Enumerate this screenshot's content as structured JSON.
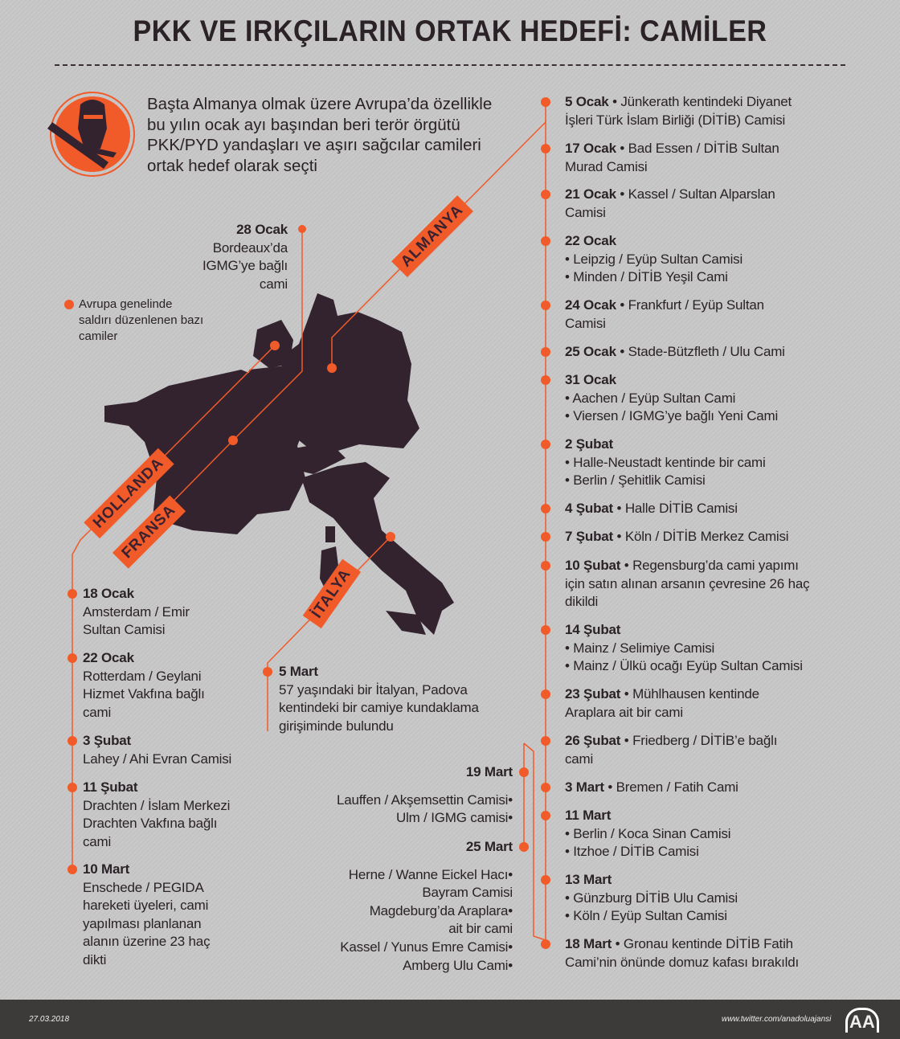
{
  "title": "PKK VE IRKÇILARIN ORTAK HEDEFİ: CAMİLER",
  "intro": "Başta Almanya olmak üzere Avrupa’da özellikle bu yılın ocak ayı başından beri terör örgütü PKK/PYD yandaşları ve aşırı sağcılar camileri ortak hedef olarak seçti",
  "icon": "militant-with-rifle-icon",
  "legend": [
    "Avrupa genelinde",
    "saldırı düzenlenen bazı",
    "camiler"
  ],
  "colors": {
    "accent": "#f15a29",
    "map": "#33232f",
    "footer": "#3c3b3a"
  },
  "country_labels": {
    "germany": "ALMANYA",
    "netherlands": "HOLLANDA",
    "france": "FRANSA",
    "italy": "İTALYA"
  },
  "france": {
    "date": "28 Ocak",
    "lines": [
      "Bordeaux’da",
      "IGMG’ye bağlı",
      "cami"
    ]
  },
  "italy": {
    "date": "5 Mart",
    "lines": [
      "57 yaşındaki bir İtalyan, Padova",
      "kentindeki bir camiye kundaklama",
      "girişiminde bulundu"
    ]
  },
  "netherlands": [
    {
      "date": "18 Ocak",
      "lines": [
        "Amsterdam / Emir",
        "Sultan Camisi"
      ]
    },
    {
      "date": "22 Ocak",
      "lines": [
        "Rotterdam / Geylani",
        "Hizmet Vakfına bağlı",
        "cami"
      ]
    },
    {
      "date": "3 Şubat",
      "lines": [
        "Lahey / Ahi Evran Camisi"
      ]
    },
    {
      "date": "11 Şubat",
      "lines": [
        "Drachten / İslam Merkezi",
        "Drachten Vakfına bağlı",
        "cami"
      ]
    },
    {
      "date": "10 Mart",
      "lines": [
        "Enschede / PEGIDA",
        "hareketi üyeleri, cami",
        "yapılması planlanan",
        "alanın üzerine 23 haç",
        "dikti"
      ]
    }
  ],
  "germany_extra": [
    {
      "date": "19 Mart",
      "lines": [
        "Lauffen / Akşemsettin Camisi•",
        "Ulm / IGMG camisi•"
      ]
    },
    {
      "date": "25 Mart",
      "lines": [
        "Herne / Wanne Eickel Hacı•",
        "Bayram Camisi",
        "Magdeburg’da Araplara•",
        "ait bir cami",
        "Kassel / Yunus Emre Camisi•",
        "Amberg Ulu Cami•"
      ]
    }
  ],
  "germany": [
    {
      "date": "5 Ocak",
      "inline": " • Jünkerath kentindeki Diyanet",
      "lines": [
        "İşleri Türk İslam Birliği (DİTİB) Camisi"
      ]
    },
    {
      "date": "17 Ocak",
      "inline": " • Bad Essen / DİTİB Sultan",
      "lines": [
        "Murad Camisi"
      ]
    },
    {
      "date": "21 Ocak",
      "inline": " • Kassel / Sultan Alparslan",
      "lines": [
        "Camisi"
      ]
    },
    {
      "date": "22 Ocak",
      "inline": "",
      "lines": [
        "• Leipzig / Eyüp Sultan Camisi",
        "• Minden / DİTİB Yeşil Cami"
      ]
    },
    {
      "date": "24 Ocak",
      "inline": " • Frankfurt / Eyüp Sultan",
      "lines": [
        "Camisi"
      ]
    },
    {
      "date": "25 Ocak",
      "inline": " • Stade-Bützfleth / Ulu Cami",
      "lines": []
    },
    {
      "date": "31 Ocak",
      "inline": "",
      "lines": [
        "• Aachen /  Eyüp Sultan Cami",
        "• Viersen / IGMG’ye bağlı Yeni Cami"
      ]
    },
    {
      "date": "2 Şubat",
      "inline": "",
      "lines": [
        "• Halle-Neustadt kentinde bir cami",
        "• Berlin / Şehitlik Camisi"
      ]
    },
    {
      "date": "4 Şubat",
      "inline": " • Halle DİTİB Camisi",
      "lines": []
    },
    {
      "date": "7 Şubat",
      "inline": " • Köln / DİTİB Merkez Camisi",
      "lines": []
    },
    {
      "date": "10 Şubat",
      "inline": " • Regensburg’da cami yapımı",
      "lines": [
        "için satın alınan arsanın çevresine 26 haç",
        "dikildi"
      ]
    },
    {
      "date": "14 Şubat",
      "inline": "",
      "lines": [
        "• Mainz / Selimiye Camisi",
        "• Mainz / Ülkü ocağı Eyüp Sultan Camisi"
      ]
    },
    {
      "date": "23 Şubat",
      "inline": " • Mühlhausen kentinde",
      "lines": [
        "Araplara ait bir cami"
      ]
    },
    {
      "date": "26 Şubat",
      "inline": " • Friedberg / DİTİB’e bağlı",
      "lines": [
        "cami"
      ]
    },
    {
      "date": "3 Mart",
      "inline": " • Bremen / Fatih Cami",
      "lines": []
    },
    {
      "date": "11 Mart",
      "inline": "",
      "lines": [
        "• Berlin / Koca Sinan Camisi",
        "• Itzhoe / DİTİB Camisi"
      ]
    },
    {
      "date": "13 Mart",
      "inline": "",
      "lines": [
        "• Günzburg DİTİB Ulu Camisi",
        "• Köln /  Eyüp Sultan Camisi"
      ]
    },
    {
      "date": "18 Mart",
      "inline": "  • Gronau kentinde DİTİB Fatih",
      "lines": [
        "Cami’nin önünde domuz kafası bırakıldı"
      ]
    }
  ],
  "footer": {
    "date": "27.03.2018",
    "url": "www.twitter.com/anadoluajansi",
    "logo": "AA"
  }
}
